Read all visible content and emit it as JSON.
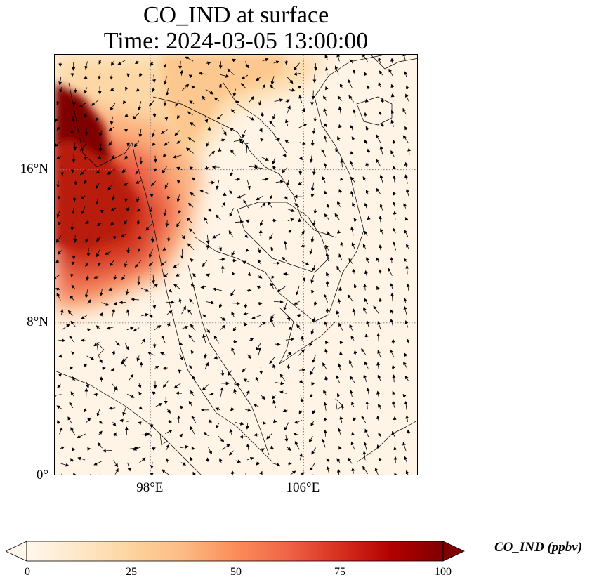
{
  "title": {
    "line1": "CO_IND at surface",
    "line2": "Time: 2024-03-05 13:00:00"
  },
  "map": {
    "lat_range": [
      0,
      22
    ],
    "lon_range": [
      93,
      112
    ],
    "lat_ticks": [
      {
        "value": 16,
        "label": "16°N"
      },
      {
        "value": 8,
        "label": "8°N"
      },
      {
        "value": 0,
        "label": "0°"
      }
    ],
    "lon_ticks": [
      {
        "value": 98,
        "label": "98°E"
      },
      {
        "value": 106,
        "label": "106°E"
      }
    ],
    "gridlines": true,
    "gridline_style": "dotted",
    "field_variable": "CO_IND",
    "wind_vectors": true,
    "high_concentration_region": "western edge (Myanmar coast / Andaman Sea), peak near 18-21°N, 93-95°E"
  },
  "colorbar": {
    "label": "CO_IND (ppbv)",
    "min": 0,
    "max": 100,
    "ticks": [
      "0",
      "25",
      "50",
      "75",
      "100"
    ],
    "colormap": "OrRd",
    "extend": "both",
    "colors": [
      "#fff7ec",
      "#fee8c8",
      "#fdd49e",
      "#fdbb84",
      "#fc8d59",
      "#ef6548",
      "#d7301f",
      "#b30000",
      "#7f0000"
    ]
  }
}
